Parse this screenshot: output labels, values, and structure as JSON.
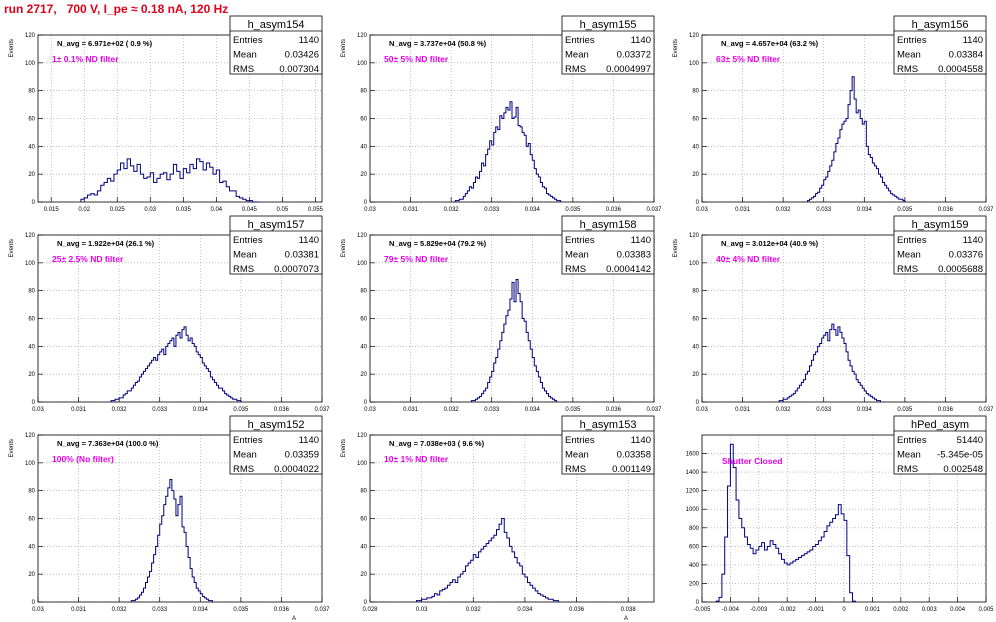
{
  "run_title": "run 2717,   700 V, I_pe ≈ 0.18 nA, 120 Hz",
  "colors": {
    "line": "#000080",
    "note": "#e800e8",
    "title": "#e0001a",
    "grid": "#999999"
  },
  "chart_data": [
    {
      "type": "histogram",
      "name": "h_asym154",
      "navg": "N_avg = 6.971e+02 ( 0.9 %)",
      "note": "1± 0.1% ND filter",
      "stats": [
        [
          "Entries",
          "1140"
        ],
        [
          "Mean",
          "0.03426"
        ],
        [
          "RMS",
          "0.007304"
        ]
      ],
      "ylabel": "Events",
      "xlabel": "A",
      "xlim": [
        0.013,
        0.056
      ],
      "ylim": [
        0,
        120
      ],
      "xticks": [
        0.015,
        0.02,
        0.025,
        0.03,
        0.035,
        0.04,
        0.045,
        0.05,
        0.055
      ],
      "xtick_labels": [
        "0.015",
        "0.02",
        "0.025",
        "0.03",
        "0.035",
        "0.04",
        "0.045",
        "0.05",
        "0.055"
      ],
      "yticks": [
        0,
        20,
        40,
        60,
        80,
        100,
        120
      ],
      "ytick_labels": [
        "0",
        "20",
        "40",
        "60",
        "80",
        "100",
        "120"
      ],
      "bins": {
        "x0": 0.0195,
        "w": 0.0005,
        "counts": [
          2,
          3,
          5,
          6,
          5,
          8,
          12,
          14,
          17,
          15,
          20,
          23,
          28,
          24,
          31,
          26,
          22,
          27,
          20,
          17,
          18,
          21,
          14,
          17,
          20,
          21,
          16,
          20,
          27,
          22,
          17,
          24,
          21,
          27,
          24,
          31,
          29,
          23,
          28,
          25,
          20,
          23,
          14,
          15,
          11,
          8,
          8,
          4,
          3,
          2,
          1,
          1,
          0,
          0
        ]
      }
    },
    {
      "type": "histogram",
      "name": "h_asym155",
      "navg": "N_avg = 3.737e+04 (50.8 %)",
      "note": "50± 5% ND filter",
      "stats": [
        [
          "Entries",
          "1140"
        ],
        [
          "Mean",
          "0.03372"
        ],
        [
          "RMS",
          "0.0004997"
        ]
      ],
      "ylabel": "Events",
      "xlabel": "A",
      "xlim": [
        0.03,
        0.037
      ],
      "ylim": [
        0,
        120
      ],
      "xticks": [
        0.03,
        0.031,
        0.032,
        0.033,
        0.034,
        0.035,
        0.036,
        0.037
      ],
      "xtick_labels": [
        "0.03",
        "0.031",
        "0.032",
        "0.033",
        "0.034",
        "0.035",
        "0.036",
        "0.037"
      ],
      "yticks": [
        0,
        20,
        40,
        60,
        80,
        100,
        120
      ],
      "ytick_labels": [
        "0",
        "20",
        "40",
        "60",
        "80",
        "100",
        "120"
      ],
      "bins": {
        "x0": 0.0321,
        "w": 5e-05,
        "counts": [
          1,
          1,
          2,
          2,
          4,
          6,
          8,
          11,
          10,
          14,
          18,
          17,
          22,
          28,
          26,
          34,
          38,
          44,
          41,
          50,
          54,
          52,
          62,
          60,
          64,
          68,
          66,
          72,
          60,
          61,
          68,
          55,
          54,
          50,
          48,
          40,
          42,
          34,
          30,
          24,
          20,
          18,
          14,
          11,
          10,
          6,
          5,
          4,
          3,
          2,
          1,
          1
        ]
      }
    },
    {
      "type": "histogram",
      "name": "h_asym156",
      "navg": "N_avg = 4.657e+04 (63.2 %)",
      "note": "63± 5% ND filter",
      "stats": [
        [
          "Entries",
          "1140"
        ],
        [
          "Mean",
          "0.03384"
        ],
        [
          "RMS",
          "0.0004558"
        ]
      ],
      "ylabel": "Events",
      "xlabel": "A",
      "xlim": [
        0.03,
        0.037
      ],
      "ylim": [
        0,
        120
      ],
      "xticks": [
        0.03,
        0.031,
        0.032,
        0.033,
        0.034,
        0.035,
        0.036,
        0.037
      ],
      "xtick_labels": [
        "0.03",
        "0.031",
        "0.032",
        "0.033",
        "0.034",
        "0.035",
        "0.036",
        "0.037"
      ],
      "yticks": [
        0,
        20,
        40,
        60,
        80,
        100,
        120
      ],
      "ytick_labels": [
        "0",
        "20",
        "40",
        "60",
        "80",
        "100",
        "120"
      ],
      "bins": {
        "x0": 0.0326,
        "w": 5e-05,
        "counts": [
          1,
          2,
          3,
          4,
          6,
          7,
          10,
          12,
          16,
          18,
          22,
          26,
          30,
          36,
          42,
          46,
          52,
          56,
          58,
          60,
          70,
          80,
          90,
          74,
          64,
          66,
          60,
          56,
          58,
          40,
          34,
          32,
          28,
          26,
          24,
          20,
          18,
          14,
          12,
          10,
          8,
          6,
          5,
          4,
          3,
          2,
          2,
          1
        ]
      }
    },
    {
      "type": "histogram",
      "name": "h_asym157",
      "navg": "N_avg = 1.922e+04 (26.1 %)",
      "note": "25± 2.5% ND filter",
      "stats": [
        [
          "Entries",
          "1140"
        ],
        [
          "Mean",
          "0.03381"
        ],
        [
          "RMS",
          "0.0007073"
        ]
      ],
      "ylabel": "Events",
      "xlabel": "A",
      "xlim": [
        0.03,
        0.037
      ],
      "ylim": [
        0,
        120
      ],
      "xticks": [
        0.03,
        0.031,
        0.032,
        0.033,
        0.034,
        0.035,
        0.036,
        0.037
      ],
      "xtick_labels": [
        "0.03",
        "0.031",
        "0.032",
        "0.033",
        "0.034",
        "0.035",
        "0.036",
        "0.037"
      ],
      "yticks": [
        0,
        20,
        40,
        60,
        80,
        100,
        120
      ],
      "ytick_labels": [
        "0",
        "20",
        "40",
        "60",
        "80",
        "100",
        "120"
      ],
      "bins": {
        "x0": 0.0318,
        "w": 5e-05,
        "counts": [
          1,
          1,
          2,
          2,
          3,
          3,
          5,
          6,
          8,
          8,
          10,
          12,
          14,
          15,
          18,
          20,
          22,
          24,
          26,
          28,
          30,
          32,
          30,
          34,
          36,
          38,
          34,
          40,
          42,
          44,
          46,
          40,
          48,
          50,
          46,
          52,
          54,
          48,
          44,
          46,
          42,
          40,
          36,
          34,
          32,
          28,
          26,
          24,
          22,
          18,
          16,
          14,
          12,
          10,
          10,
          8,
          6,
          5,
          4,
          3,
          2,
          2,
          1,
          1
        ]
      }
    },
    {
      "type": "histogram",
      "name": "h_asym158",
      "navg": "N_avg = 5.829e+04 (79.2 %)",
      "note": "79± 5% ND filter",
      "stats": [
        [
          "Entries",
          "1140"
        ],
        [
          "Mean",
          "0.03383"
        ],
        [
          "RMS",
          "0.0004142"
        ]
      ],
      "ylabel": "Events",
      "xlabel": "A",
      "xlim": [
        0.03,
        0.037
      ],
      "ylim": [
        0,
        120
      ],
      "xticks": [
        0.03,
        0.031,
        0.032,
        0.033,
        0.034,
        0.035,
        0.036,
        0.037
      ],
      "xtick_labels": [
        "0.03",
        "0.031",
        "0.032",
        "0.033",
        "0.034",
        "0.035",
        "0.036",
        "0.037"
      ],
      "yticks": [
        0,
        20,
        40,
        60,
        80,
        100,
        120
      ],
      "ytick_labels": [
        "0",
        "20",
        "40",
        "60",
        "80",
        "100",
        "120"
      ],
      "bins": {
        "x0": 0.0325,
        "w": 5e-05,
        "counts": [
          1,
          1,
          2,
          3,
          4,
          6,
          8,
          10,
          14,
          18,
          22,
          28,
          32,
          38,
          44,
          50,
          56,
          62,
          66,
          74,
          86,
          72,
          88,
          78,
          72,
          60,
          58,
          50,
          44,
          38,
          32,
          26,
          22,
          18,
          14,
          10,
          8,
          6,
          4,
          3,
          2,
          1
        ]
      }
    },
    {
      "type": "histogram",
      "name": "h_asym159",
      "navg": "N_avg = 3.012e+04 (40.9 %)",
      "note": "40± 4% ND filter",
      "stats": [
        [
          "Entries",
          "1140"
        ],
        [
          "Mean",
          "0.03376"
        ],
        [
          "RMS",
          "0.0005688"
        ]
      ],
      "ylabel": "Events",
      "xlabel": "A",
      "xlim": [
        0.03,
        0.037
      ],
      "ylim": [
        0,
        120
      ],
      "xticks": [
        0.03,
        0.031,
        0.032,
        0.033,
        0.034,
        0.035,
        0.036,
        0.037
      ],
      "xtick_labels": [
        "0.03",
        "0.031",
        "0.032",
        "0.033",
        "0.034",
        "0.035",
        "0.036",
        "0.037"
      ],
      "yticks": [
        0,
        20,
        40,
        60,
        80,
        100,
        120
      ],
      "ytick_labels": [
        "0",
        "20",
        "40",
        "60",
        "80",
        "100",
        "120"
      ],
      "bins": {
        "x0": 0.0319,
        "w": 5e-05,
        "counts": [
          1,
          1,
          2,
          2,
          3,
          4,
          5,
          6,
          8,
          10,
          12,
          14,
          16,
          20,
          22,
          26,
          30,
          34,
          36,
          40,
          42,
          46,
          48,
          50,
          44,
          52,
          56,
          52,
          48,
          54,
          50,
          46,
          42,
          36,
          30,
          26,
          22,
          20,
          16,
          14,
          12,
          10,
          8,
          6,
          5,
          4,
          3,
          2,
          1,
          1
        ]
      }
    },
    {
      "type": "histogram",
      "name": "h_asym152",
      "navg": "N_avg = 7.363e+04 (100.0 %)",
      "note": "100% (No filter)",
      "stats": [
        [
          "Entries",
          "1140"
        ],
        [
          "Mean",
          "0.03359"
        ],
        [
          "RMS",
          "0.0004022"
        ]
      ],
      "ylabel": "Events",
      "xlabel": "A",
      "xlim": [
        0.03,
        0.037
      ],
      "ylim": [
        0,
        120
      ],
      "xticks": [
        0.03,
        0.031,
        0.032,
        0.033,
        0.034,
        0.035,
        0.036,
        0.037
      ],
      "xtick_labels": [
        "0.03",
        "0.031",
        "0.032",
        "0.033",
        "0.034",
        "0.035",
        "0.036",
        "0.037"
      ],
      "yticks": [
        0,
        20,
        40,
        60,
        80,
        100,
        120
      ],
      "ytick_labels": [
        "0",
        "20",
        "40",
        "60",
        "80",
        "100",
        "120"
      ],
      "bins": {
        "x0": 0.0323,
        "w": 5e-05,
        "counts": [
          1,
          1,
          2,
          3,
          5,
          7,
          10,
          14,
          18,
          22,
          28,
          34,
          40,
          48,
          56,
          62,
          70,
          76,
          82,
          88,
          80,
          74,
          62,
          70,
          76,
          54,
          50,
          40,
          32,
          24,
          18,
          14,
          10,
          8,
          6,
          4,
          3,
          2,
          1,
          1
        ]
      }
    },
    {
      "type": "histogram",
      "name": "h_asym153",
      "navg": "N_avg = 7.038e+03 ( 9.6 %)",
      "note": "10± 1% ND filter",
      "stats": [
        [
          "Entries",
          "1140"
        ],
        [
          "Mean",
          "0.03358"
        ],
        [
          "RMS",
          "0.001149"
        ]
      ],
      "ylabel": "Events",
      "xlabel": "A",
      "xlim": [
        0.028,
        0.039
      ],
      "ylim": [
        0,
        120
      ],
      "xticks": [
        0.028,
        0.03,
        0.032,
        0.034,
        0.036,
        0.038
      ],
      "xtick_labels": [
        "0.028",
        "0.03",
        "0.032",
        "0.034",
        "0.036",
        "0.038"
      ],
      "yticks": [
        0,
        20,
        40,
        60,
        80,
        100,
        120
      ],
      "ytick_labels": [
        "0",
        "20",
        "40",
        "60",
        "80",
        "100",
        "120"
      ],
      "bins": {
        "x0": 0.0298,
        "w": 0.0001,
        "counts": [
          1,
          1,
          2,
          2,
          3,
          3,
          4,
          6,
          5,
          8,
          9,
          10,
          12,
          14,
          16,
          14,
          18,
          20,
          22,
          26,
          28,
          30,
          34,
          32,
          36,
          38,
          40,
          42,
          44,
          46,
          48,
          52,
          56,
          60,
          50,
          46,
          40,
          36,
          32,
          28,
          26,
          20,
          18,
          14,
          12,
          10,
          8,
          6,
          5,
          4,
          3,
          2,
          2,
          1,
          1
        ]
      }
    },
    {
      "type": "histogram",
      "name": "hPed_asym",
      "navg": "",
      "note": "Shutter Closed",
      "stats": [
        [
          "Entries",
          "51440"
        ],
        [
          "Mean",
          "-5.345e-05"
        ],
        [
          "RMS",
          "0.002548"
        ]
      ],
      "ylabel": "",
      "xlabel": "",
      "xlim": [
        -0.005,
        0.005
      ],
      "ylim": [
        0,
        1800
      ],
      "xticks": [
        -0.005,
        -0.004,
        -0.003,
        -0.002,
        -0.001,
        0,
        0.001,
        0.002,
        0.003,
        0.004,
        0.005
      ],
      "xtick_labels": [
        "-0.005",
        "-0.004",
        "-0.003",
        "-0.002",
        "-0.001",
        "0",
        "0.001",
        "0.002",
        "0.003",
        "0.004",
        "0.005"
      ],
      "yticks": [
        0,
        200,
        400,
        600,
        800,
        1000,
        1200,
        1400,
        1600
      ],
      "ytick_labels": [
        "0",
        "200",
        "400",
        "600",
        "800",
        "1000",
        "1200",
        "1400",
        "1600"
      ],
      "bins": {
        "x0": -0.0045,
        "w": 0.0001,
        "counts": [
          10,
          50,
          300,
          700,
          1250,
          1700,
          1450,
          1100,
          900,
          800,
          700,
          620,
          580,
          520,
          560,
          600,
          640,
          560,
          600,
          660,
          620,
          580,
          520,
          460,
          420,
          400,
          420,
          440,
          460,
          480,
          500,
          520,
          540,
          560,
          600,
          620,
          660,
          700,
          760,
          820,
          860,
          900,
          940,
          1050,
          950,
          880,
          500,
          100,
          10
        ]
      }
    }
  ]
}
